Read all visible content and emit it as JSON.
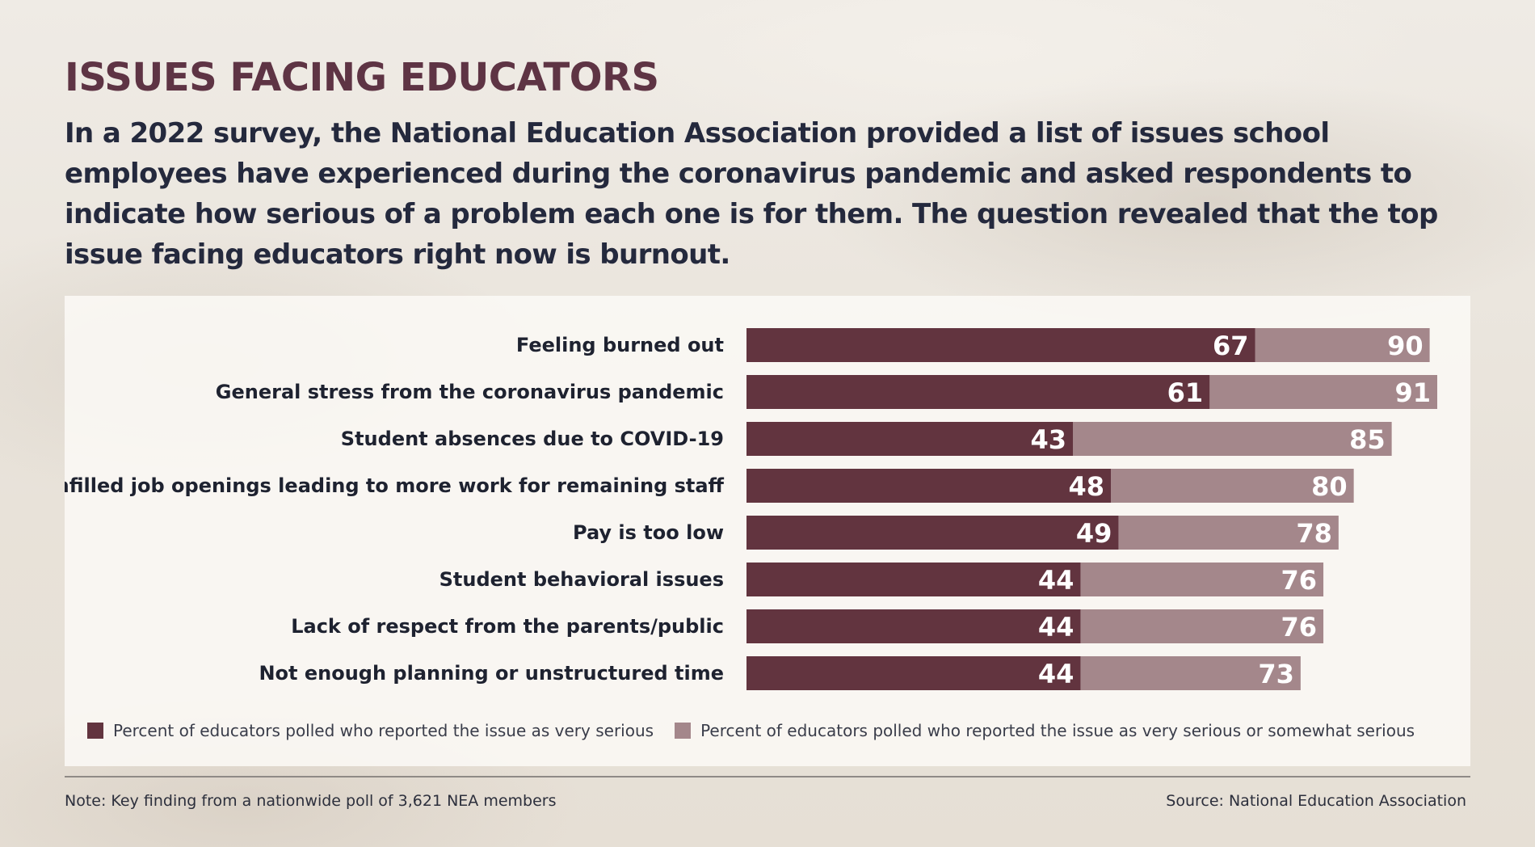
{
  "colors": {
    "very_serious": "#62343f",
    "very_or_somewhat": "#a4878b",
    "title": "#5e3444",
    "text": "#24293d"
  },
  "header": {
    "title": "ISSUES FACING EDUCATORS",
    "subtitle": "In a 2022 survey, the National Education Association provided a list of issues school employees have experienced during the coronavirus pandemic and asked respondents to indicate how serious of a problem each one is for them. The question revealed that the top issue facing educators right now is burnout."
  },
  "chart_data": {
    "type": "bar",
    "orientation": "horizontal",
    "categories": [
      "Feeling burned out",
      "General stress from the coronavirus pandemic",
      "Student absences due to COVID-19",
      "Unfilled job openings leading to more work for remaining staff",
      "Pay is too low",
      "Student behavioral issues",
      "Lack of respect from the parents/public",
      "Not enough planning or unstructured time"
    ],
    "series": [
      {
        "name": "Percent of educators polled who reported the issue as very serious",
        "values": [
          67,
          61,
          43,
          48,
          49,
          44,
          44,
          44
        ]
      },
      {
        "name": "Percent of educators polled who reported the issue as very serious or somewhat serious",
        "values": [
          90,
          91,
          85,
          80,
          78,
          76,
          76,
          73
        ]
      }
    ],
    "xlim": [
      0,
      91
    ],
    "grid": false,
    "legend": "bottom"
  },
  "footer": {
    "note": "Note: Key finding from a nationwide poll of 3,621 NEA members",
    "source": "Source: National Education Association"
  }
}
